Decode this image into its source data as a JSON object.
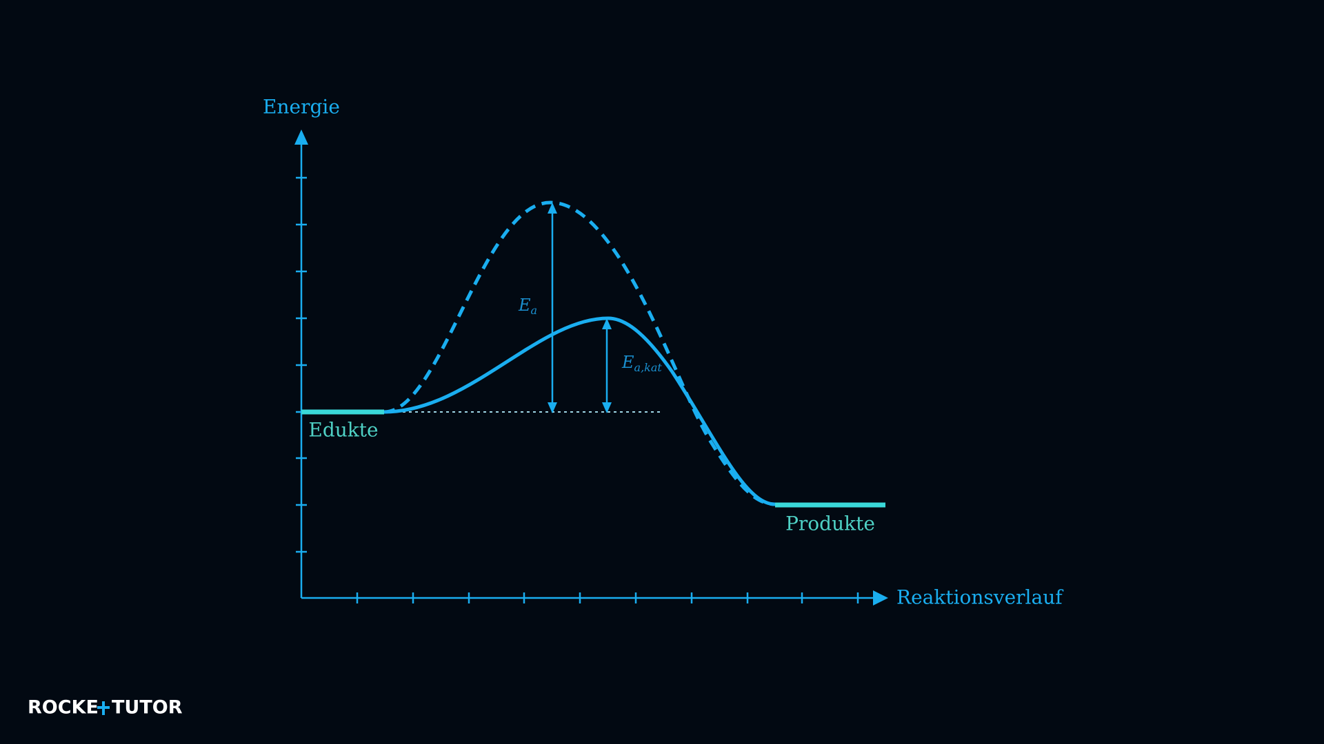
{
  "axes": {
    "y_label": "Energie",
    "x_label": "Reaktionsverlauf"
  },
  "levels": {
    "reactants": "Edukte",
    "products": "Produkte"
  },
  "annotations": {
    "activation_energy": {
      "main": "E",
      "sub": "a"
    },
    "catalyzed_activation_energy": {
      "main": "E",
      "sub": "a,kat"
    }
  },
  "logo": {
    "left": "ROCKE",
    "right": "TUTOR"
  }
}
